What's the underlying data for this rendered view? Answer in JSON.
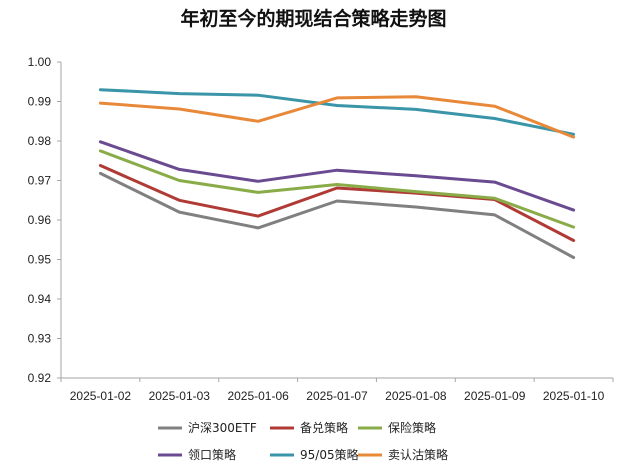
{
  "chart_data": {
    "type": "line",
    "title": "年初至今的期现结合策略走势图",
    "xlabel": "",
    "ylabel": "",
    "x": [
      "2025-01-02",
      "2025-01-03",
      "2025-01-06",
      "2025-01-07",
      "2025-01-08",
      "2025-01-09",
      "2025-01-10"
    ],
    "ylim": [
      0.92,
      1.0
    ],
    "yticks": [
      "1.00",
      "0.99",
      "0.98",
      "0.97",
      "0.96",
      "0.95",
      "0.94",
      "0.93",
      "0.92"
    ],
    "grid": false,
    "legend_position": "bottom",
    "series": [
      {
        "name": "沪深300ETF",
        "color": "#808080",
        "values": [
          0.9718,
          0.962,
          0.958,
          0.9648,
          0.9633,
          0.9613,
          0.9505
        ]
      },
      {
        "name": "备兑策略",
        "color": "#b03a35",
        "values": [
          0.9738,
          0.965,
          0.961,
          0.9681,
          0.9668,
          0.9652,
          0.9548
        ]
      },
      {
        "name": "保险策略",
        "color": "#8aac48",
        "values": [
          0.9775,
          0.97,
          0.967,
          0.969,
          0.9672,
          0.9655,
          0.9582
        ]
      },
      {
        "name": "领口策略",
        "color": "#6a4a90",
        "values": [
          0.9798,
          0.9728,
          0.9698,
          0.9726,
          0.9712,
          0.9696,
          0.9625
        ]
      },
      {
        "name": "95/05策略",
        "color": "#3a95a8",
        "values": [
          0.993,
          0.992,
          0.9916,
          0.989,
          0.988,
          0.9857,
          0.9817
        ]
      },
      {
        "name": "卖认沽策略",
        "color": "#e8893a",
        "values": [
          0.9896,
          0.9881,
          0.985,
          0.9909,
          0.9912,
          0.9888,
          0.981
        ]
      }
    ]
  }
}
